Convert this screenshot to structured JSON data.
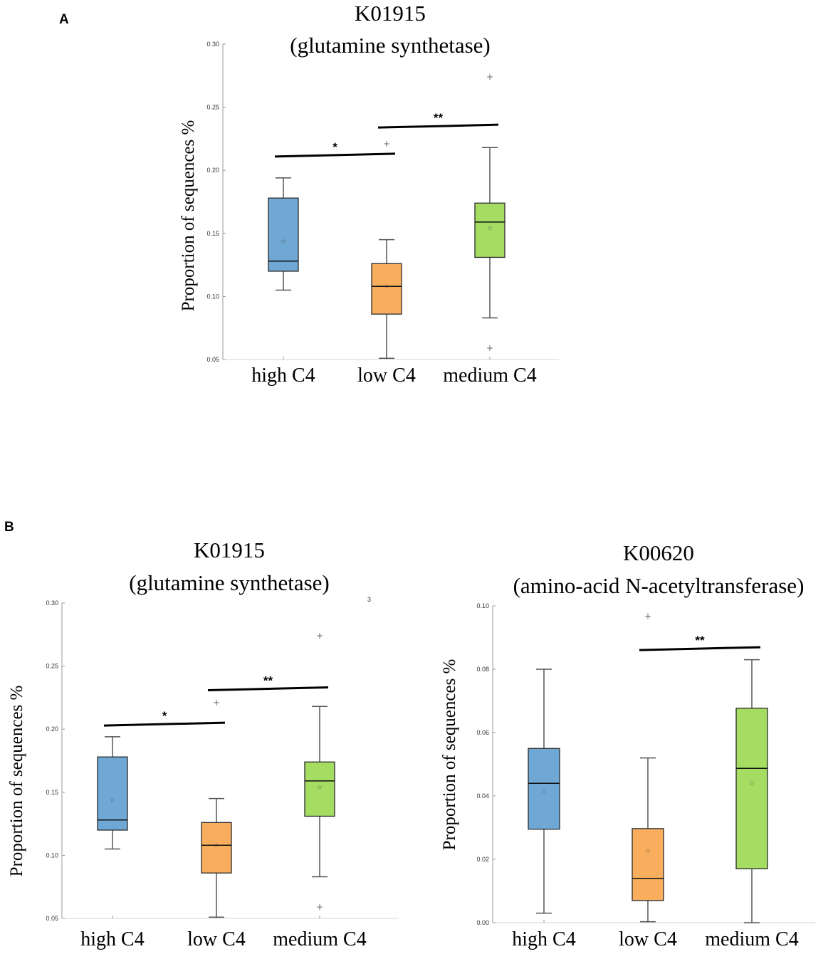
{
  "panels": [
    {
      "id": "A",
      "label": "A"
    },
    {
      "id": "B",
      "label": "B"
    }
  ],
  "colors": {
    "high C4": "#6fa8d4",
    "low C4": "#f9ae5e",
    "medium C4": "#a5dc62",
    "border": "#2b2b2b",
    "whisker": "#555555",
    "axis": "#9a9a9a"
  },
  "stray_mark": "3",
  "chart_data": [
    {
      "type": "box",
      "panel": "A",
      "title": "K01915",
      "subtitle": "(glutamine synthetase)",
      "xlabel": "",
      "ylabel": "Proportion of sequences %",
      "ylim": [
        0.05,
        0.3
      ],
      "yticks": [
        "0.05",
        "0.10",
        "0.15",
        "0.20",
        "0.25",
        "0.30"
      ],
      "categories": [
        "high C4",
        "low C4",
        "medium C4"
      ],
      "boxes": [
        {
          "name": "high C4",
          "min": 0.105,
          "q1": 0.12,
          "median": 0.128,
          "q3": 0.178,
          "max": 0.194,
          "mean": 0.144,
          "outliers": []
        },
        {
          "name": "low C4",
          "min": 0.051,
          "q1": 0.086,
          "median": 0.108,
          "q3": 0.126,
          "max": 0.145,
          "mean": 0.108,
          "outliers": [
            0.221
          ]
        },
        {
          "name": "medium C4",
          "min": 0.083,
          "q1": 0.131,
          "median": 0.159,
          "q3": 0.174,
          "max": 0.218,
          "mean": 0.154,
          "outliers": [
            0.274,
            0.059
          ]
        }
      ],
      "significance": [
        {
          "from": 0,
          "to": 1,
          "y": 0.212,
          "label": "*"
        },
        {
          "from": 1,
          "to": 2,
          "y": 0.235,
          "label": "**"
        }
      ]
    },
    {
      "type": "box",
      "panel": "B",
      "title": "K01915",
      "subtitle": "(glutamine synthetase)",
      "xlabel": "",
      "ylabel": "Proportion of sequences %",
      "ylim": [
        0.05,
        0.3
      ],
      "yticks": [
        "0.05",
        "0.10",
        "0.15",
        "0.20",
        "0.25",
        "0.30"
      ],
      "categories": [
        "high C4",
        "low C4",
        "medium C4"
      ],
      "boxes": [
        {
          "name": "high C4",
          "min": 0.105,
          "q1": 0.12,
          "median": 0.128,
          "q3": 0.178,
          "max": 0.194,
          "mean": 0.144,
          "outliers": []
        },
        {
          "name": "low C4",
          "min": 0.051,
          "q1": 0.086,
          "median": 0.108,
          "q3": 0.126,
          "max": 0.145,
          "mean": 0.108,
          "outliers": [
            0.221
          ]
        },
        {
          "name": "medium C4",
          "min": 0.083,
          "q1": 0.131,
          "median": 0.159,
          "q3": 0.174,
          "max": 0.218,
          "mean": 0.154,
          "outliers": [
            0.274,
            0.059
          ]
        }
      ],
      "significance": [
        {
          "from": 0,
          "to": 1,
          "y": 0.204,
          "label": "*"
        },
        {
          "from": 1,
          "to": 2,
          "y": 0.232,
          "label": "**"
        }
      ]
    },
    {
      "type": "box",
      "panel": "B",
      "title": "K00620",
      "subtitle": "(amino-acid N-acetyltransferase)",
      "xlabel": "",
      "ylabel": "Proportion of sequences %",
      "ylim": [
        0.0,
        0.1
      ],
      "yticks": [
        "0.00",
        "0.02",
        "0.04",
        "0.06",
        "0.08",
        "0.10"
      ],
      "categories": [
        "high C4",
        "low C4",
        "medium C4"
      ],
      "boxes": [
        {
          "name": "high C4",
          "min": 0.003,
          "q1": 0.0295,
          "median": 0.044,
          "q3": 0.055,
          "max": 0.08,
          "mean": 0.0415,
          "outliers": []
        },
        {
          "name": "low C4",
          "min": 0.0003,
          "q1": 0.007,
          "median": 0.014,
          "q3": 0.0297,
          "max": 0.052,
          "mean": 0.0227,
          "outliers": [
            0.0967
          ]
        },
        {
          "name": "medium C4",
          "min": 0.0,
          "q1": 0.017,
          "median": 0.0487,
          "q3": 0.0677,
          "max": 0.083,
          "mean": 0.044,
          "outliers": []
        }
      ],
      "significance": [
        {
          "from": 1,
          "to": 2,
          "y": 0.0865,
          "label": "**"
        }
      ]
    }
  ]
}
